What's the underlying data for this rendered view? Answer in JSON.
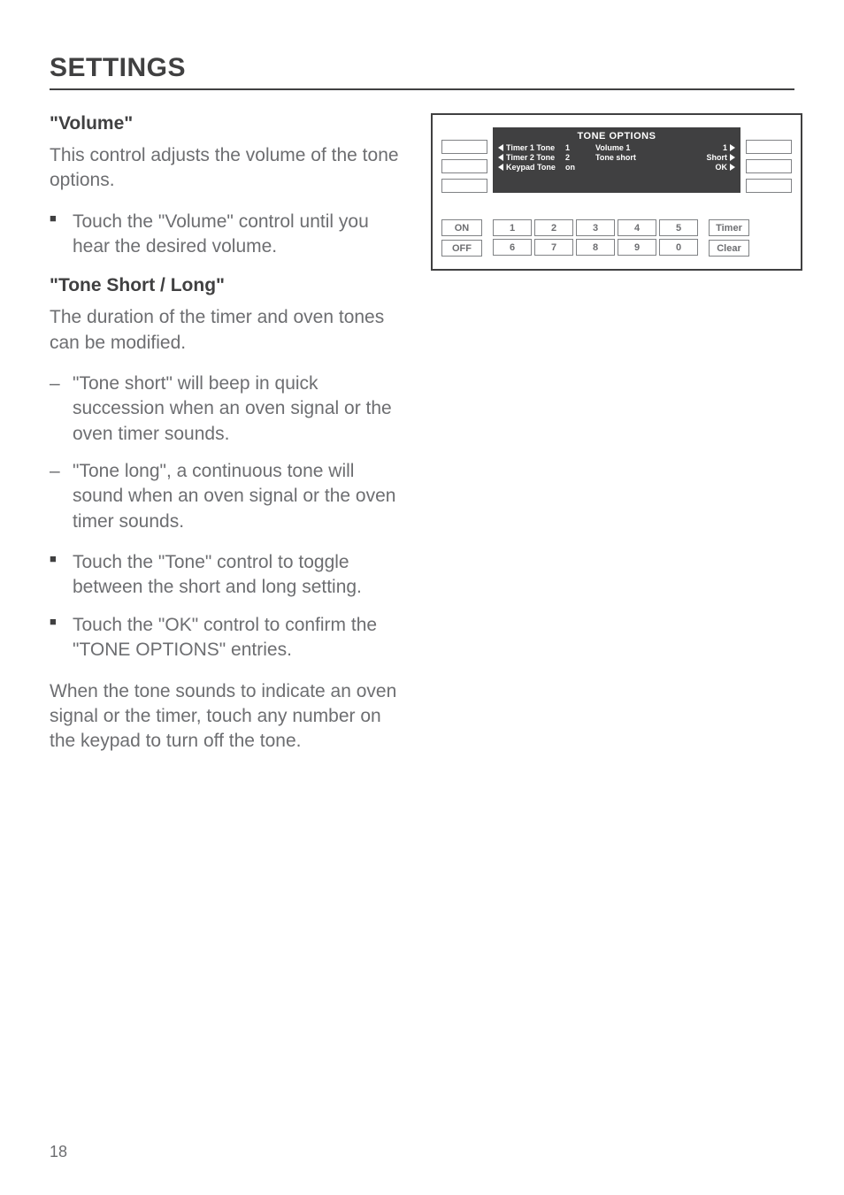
{
  "header": "SETTINGS",
  "page_number": "18",
  "left": {
    "volume": {
      "heading": "\"Volume\"",
      "intro": "This control adjusts the volume of the tone options.",
      "bullets": [
        "Touch the \"Volume\" control until you hear the desired volume."
      ]
    },
    "tone": {
      "heading": "\"Tone Short / Long\"",
      "intro": "The duration of the timer and oven tones can be modified.",
      "dashes": [
        "\"Tone short\" will beep in quick succession when an oven signal or the oven timer sounds.",
        "\"Tone long\", a continuous tone will sound when an oven signal or the oven timer sounds."
      ],
      "bullets": [
        "Touch the \"Tone\" control to toggle between the short and long setting.",
        "Touch the \"OK\" control to confirm the \"TONE OPTIONS\" entries."
      ],
      "closing": "When the tone sounds to indicate an oven signal or the timer, touch any number on the keypad to turn off the tone."
    }
  },
  "panel": {
    "display": {
      "title": "TONE OPTIONS",
      "rows": [
        {
          "left": "Timer 1 Tone",
          "mid": "1",
          "right_label": "Volume 1",
          "right_end": "1"
        },
        {
          "left": "Timer 2 Tone",
          "mid": "2",
          "right_label": "Tone short",
          "right_end": "Short"
        },
        {
          "left": "Keypad Tone",
          "mid": "on",
          "right_label": "",
          "right_end": "OK"
        }
      ]
    },
    "left_buttons": {
      "on": "ON",
      "off": "OFF"
    },
    "keypad": [
      "1",
      "2",
      "3",
      "4",
      "5",
      "6",
      "7",
      "8",
      "9",
      "0"
    ],
    "right_buttons": {
      "timer": "Timer",
      "clear": "Clear"
    }
  },
  "colors": {
    "text": "#6d6e71",
    "heading": "#404041",
    "border": "#404041",
    "display_bg": "#404041",
    "display_fg": "#ffffff",
    "key_border": "#808285"
  }
}
